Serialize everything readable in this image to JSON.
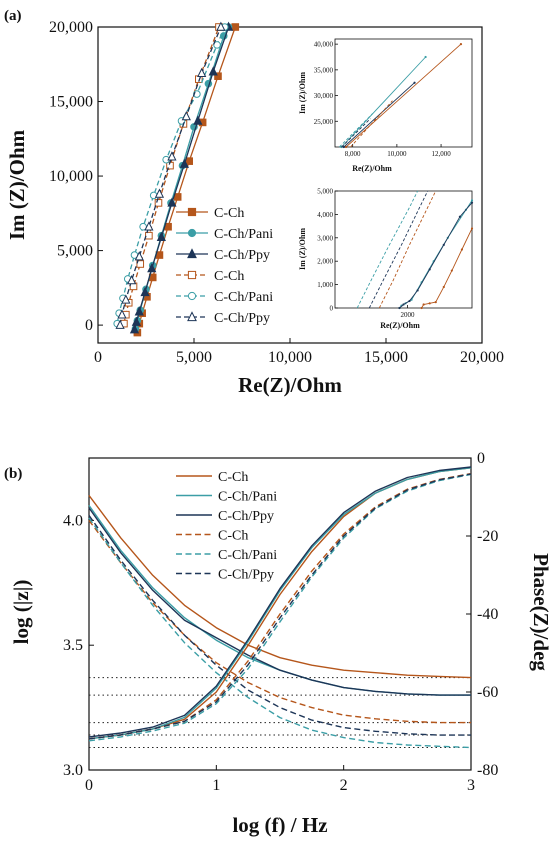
{
  "colors": {
    "C-Ch": "#b5561b",
    "C-Ch/Pani": "#3b9ea6",
    "C-Ch/Ppy": "#1d3557"
  },
  "chart_data": [
    {
      "panel": "(a)",
      "type": "scatter",
      "xlabel": "Re(Z)/Ohm",
      "ylabel": "Im (Z)/Ohm",
      "xlim": [
        0,
        20000
      ],
      "ylim": [
        -1200,
        20000
      ],
      "xticks": [
        0,
        5000,
        10000,
        15000,
        20000
      ],
      "xtick_labels": [
        "0",
        "5,000",
        "10,000",
        "15,000",
        "20,000"
      ],
      "yticks": [
        0,
        5000,
        10000,
        15000,
        20000
      ],
      "ytick_labels": [
        "0",
        "5,000",
        "10,000",
        "15,000",
        "20,000"
      ],
      "legend": "center-left",
      "series": [
        {
          "name": "C-Ch",
          "color_key": "C-Ch",
          "style": "solid",
          "marker": "square",
          "filled": true,
          "points": [
            [
              2050,
              -500
            ],
            [
              2150,
              100
            ],
            [
              2300,
              800
            ],
            [
              2550,
              1900
            ],
            [
              2850,
              3200
            ],
            [
              3200,
              4700
            ],
            [
              3650,
              6600
            ],
            [
              4150,
              8600
            ],
            [
              4750,
              11000
            ],
            [
              5450,
              13600
            ],
            [
              6250,
              16700
            ],
            [
              7150,
              20000
            ]
          ]
        },
        {
          "name": "C-Ch/Pani",
          "color_key": "C-Ch/Pani",
          "style": "solid",
          "marker": "circle",
          "filled": true,
          "points": [
            [
              1950,
              -250
            ],
            [
              2050,
              300
            ],
            [
              2200,
              1000
            ],
            [
              2500,
              2400
            ],
            [
              2850,
              4000
            ],
            [
              3300,
              6000
            ],
            [
              3800,
              8200
            ],
            [
              4400,
              10700
            ],
            [
              5000,
              13300
            ],
            [
              5750,
              16200
            ],
            [
              6550,
              19400
            ],
            [
              6800,
              20000
            ]
          ]
        },
        {
          "name": "C-Ch/Ppy",
          "color_key": "C-Ch/Ppy",
          "style": "solid",
          "marker": "triangle",
          "filled": true,
          "points": [
            [
              1900,
              -300
            ],
            [
              2000,
              200
            ],
            [
              2150,
              900
            ],
            [
              2450,
              2200
            ],
            [
              2800,
              3800
            ],
            [
              3300,
              5900
            ],
            [
              3850,
              8200
            ],
            [
              4500,
              10800
            ],
            [
              5200,
              13700
            ],
            [
              6000,
              17000
            ],
            [
              6800,
              20000
            ]
          ]
        },
        {
          "name": "C-Ch",
          "color_key": "C-Ch",
          "style": "dashed",
          "marker": "square",
          "filled": false,
          "points": [
            [
              1350,
              100
            ],
            [
              1450,
              700
            ],
            [
              1600,
              1500
            ],
            [
              1850,
              2600
            ],
            [
              2200,
              4100
            ],
            [
              2650,
              6000
            ],
            [
              3150,
              8200
            ],
            [
              3750,
              10700
            ],
            [
              4450,
              13500
            ],
            [
              5250,
              16500
            ],
            [
              6300,
              20000
            ]
          ]
        },
        {
          "name": "C-Ch/Pani",
          "color_key": "C-Ch/Pani",
          "style": "dashed",
          "marker": "circle",
          "filled": false,
          "points": [
            [
              1000,
              100
            ],
            [
              1100,
              800
            ],
            [
              1300,
              1800
            ],
            [
              1550,
              3100
            ],
            [
              1900,
              4700
            ],
            [
              2350,
              6600
            ],
            [
              2900,
              8700
            ],
            [
              3550,
              11100
            ],
            [
              4350,
              13700
            ],
            [
              5150,
              15500
            ],
            [
              6200,
              18800
            ],
            [
              6600,
              20000
            ]
          ]
        },
        {
          "name": "C-Ch/Ppy",
          "color_key": "C-Ch/Ppy",
          "style": "dashed",
          "marker": "triangle",
          "filled": false,
          "points": [
            [
              1150,
              0
            ],
            [
              1250,
              700
            ],
            [
              1450,
              1700
            ],
            [
              1750,
              3000
            ],
            [
              2150,
              4600
            ],
            [
              2650,
              6600
            ],
            [
              3200,
              8800
            ],
            [
              3850,
              11300
            ],
            [
              4600,
              14000
            ],
            [
              5400,
              16900
            ],
            [
              6400,
              20000
            ]
          ]
        }
      ],
      "insets": [
        {
          "xlabel": "Re(Z)/Ohm",
          "ylabel": "Im (Z)/Ohm",
          "xlim": [
            7200,
            13400
          ],
          "ylim": [
            20000,
            41000
          ],
          "xticks": [
            8000,
            10000,
            12000
          ],
          "xtick_labels": [
            "8,000",
            "10,000",
            "12,000"
          ],
          "yticks": [
            25000,
            30000,
            35000,
            40000
          ],
          "ytick_labels": [
            "25,000",
            "30,000",
            "35,000",
            "40,000"
          ],
          "lines": [
            {
              "color_key": "C-Ch",
              "style": "solid",
              "points": [
                [
                  7700,
                  20000
                ],
                [
                  12900,
                  40000
                ]
              ]
            },
            {
              "color_key": "C-Ch/Pani",
              "style": "solid",
              "points": [
                [
                  7500,
                  20000
                ],
                [
                  11300,
                  37500
                ]
              ]
            },
            {
              "color_key": "C-Ch/Ppy",
              "style": "solid",
              "points": [
                [
                  7600,
                  20000
                ],
                [
                  10800,
                  32500
                ]
              ]
            },
            {
              "color_key": "C-Ch",
              "style": "dashed",
              "points": [
                [
                  7900,
                  20000
                ],
                [
                  9800,
                  29000
                ]
              ]
            },
            {
              "color_key": "C-Ch/Pani",
              "style": "dashed",
              "points": [
                [
                  7400,
                  20000
                ],
                [
                  8900,
                  26500
                ]
              ]
            },
            {
              "color_key": "C-Ch/Ppy",
              "style": "dashed",
              "points": [
                [
                  7500,
                  20000
                ],
                [
                  8800,
                  25500
                ]
              ]
            }
          ]
        },
        {
          "xlabel": "Re(Z)/Ohm",
          "ylabel": "Im (Z)/Ohm",
          "xlim": [
            200,
            3600
          ],
          "ylim": [
            0,
            5000
          ],
          "xticks": [
            2000
          ],
          "xtick_labels": [
            "2000"
          ],
          "yticks": [
            0,
            1000,
            2000,
            3000,
            4000,
            5000
          ],
          "ytick_labels": [
            "0",
            "1,000",
            "2,000",
            "3,000",
            "4,000",
            "5,000"
          ],
          "lines": [
            {
              "color_key": "C-Ch",
              "style": "solid",
              "points": [
                [
                  2350,
                  0
                ],
                [
                  2400,
                  150
                ],
                [
                  2550,
                  200
                ],
                [
                  2700,
                  250
                ],
                [
                  2900,
                  900
                ],
                [
                  3100,
                  1600
                ],
                [
                  3350,
                  2500
                ],
                [
                  3600,
                  3400
                ]
              ]
            },
            {
              "color_key": "C-Ch/Pani",
              "style": "solid",
              "points": [
                [
                  1800,
                  0
                ],
                [
                  1850,
                  100
                ],
                [
                  1950,
                  200
                ],
                [
                  2100,
                  350
                ],
                [
                  2350,
                  1100
                ],
                [
                  2650,
                  2000
                ],
                [
                  3000,
                  3000
                ],
                [
                  3450,
                  4200
                ],
                [
                  3600,
                  4600
                ]
              ]
            },
            {
              "color_key": "C-Ch/Ppy",
              "style": "solid",
              "points": [
                [
                  1800,
                  0
                ],
                [
                  1900,
                  150
                ],
                [
                  2050,
                  300
                ],
                [
                  2250,
                  750
                ],
                [
                  2550,
                  1650
                ],
                [
                  2900,
                  2700
                ],
                [
                  3300,
                  3900
                ],
                [
                  3600,
                  4500
                ]
              ]
            },
            {
              "color_key": "C-Ch",
              "style": "dashed",
              "points": [
                [
                  1300,
                  0
                ],
                [
                  1650,
                  1200
                ],
                [
                  2050,
                  2700
                ],
                [
                  2500,
                  4300
                ],
                [
                  2700,
                  5000
                ]
              ]
            },
            {
              "color_key": "C-Ch/Pani",
              "style": "dashed",
              "points": [
                [
                  750,
                  0
                ],
                [
                  1100,
                  1200
                ],
                [
                  1550,
                  2700
                ],
                [
                  2050,
                  4300
                ],
                [
                  2250,
                  5000
                ]
              ]
            },
            {
              "color_key": "C-Ch/Ppy",
              "style": "dashed",
              "points": [
                [
                  1050,
                  0
                ],
                [
                  1400,
                  1200
                ],
                [
                  1850,
                  2700
                ],
                [
                  2300,
                  4300
                ],
                [
                  2500,
                  5000
                ]
              ]
            }
          ]
        }
      ]
    },
    {
      "panel": "(b)",
      "type": "line",
      "xlabel": "log (f) / Hz",
      "ylabel": "log (|z|)",
      "ylabel_right": "Phase(Z)/deg",
      "xlim": [
        0,
        3
      ],
      "ylim": [
        3.0,
        4.25
      ],
      "ylim_right": [
        -80,
        0
      ],
      "xticks": [
        0,
        1,
        2,
        3
      ],
      "xtick_labels": [
        "0",
        "1",
        "2",
        "3"
      ],
      "yticks": [
        3.0,
        3.5,
        4.0
      ],
      "ytick_labels": [
        "3.0",
        "3.5",
        "4.0"
      ],
      "yticks_right": [
        0,
        -20,
        -40,
        -60,
        -80
      ],
      "ytick_labels_right": [
        "0",
        "-20",
        "-40",
        "-60",
        "-80"
      ],
      "legend": "top-left",
      "reference_lines_logz": [
        3.37,
        3.3,
        3.19,
        3.14,
        3.09
      ],
      "x": [
        0,
        0.25,
        0.5,
        0.75,
        1.0,
        1.25,
        1.5,
        1.75,
        2.0,
        2.25,
        2.5,
        2.75,
        3.0
      ],
      "series_logz": [
        {
          "name": "C-Ch",
          "color_key": "C-Ch",
          "style": "solid",
          "values": [
            4.1,
            3.93,
            3.78,
            3.66,
            3.57,
            3.5,
            3.45,
            3.42,
            3.4,
            3.39,
            3.38,
            3.375,
            3.37
          ]
        },
        {
          "name": "C-Ch/Pani",
          "color_key": "C-Ch/Pani",
          "style": "solid",
          "values": [
            4.06,
            3.88,
            3.73,
            3.61,
            3.52,
            3.45,
            3.4,
            3.36,
            3.33,
            3.315,
            3.305,
            3.3,
            3.3
          ]
        },
        {
          "name": "C-Ch/Ppy",
          "color_key": "C-Ch/Ppy",
          "style": "solid",
          "values": [
            4.05,
            3.87,
            3.72,
            3.6,
            3.53,
            3.46,
            3.4,
            3.36,
            3.33,
            3.315,
            3.305,
            3.3,
            3.3
          ]
        },
        {
          "name": "C-Ch",
          "color_key": "C-Ch",
          "style": "dashed",
          "values": [
            4.0,
            3.83,
            3.67,
            3.54,
            3.43,
            3.35,
            3.29,
            3.25,
            3.22,
            3.205,
            3.195,
            3.19,
            3.19
          ]
        },
        {
          "name": "C-Ch/Pani",
          "color_key": "C-Ch/Pani",
          "style": "dashed",
          "values": [
            4.01,
            3.83,
            3.66,
            3.51,
            3.39,
            3.29,
            3.21,
            3.16,
            3.13,
            3.11,
            3.1,
            3.095,
            3.09
          ]
        },
        {
          "name": "C-Ch/Ppy",
          "color_key": "C-Ch/Ppy",
          "style": "dashed",
          "values": [
            4.02,
            3.84,
            3.68,
            3.54,
            3.42,
            3.32,
            3.25,
            3.2,
            3.17,
            3.155,
            3.145,
            3.14,
            3.14
          ]
        }
      ],
      "series_phase": [
        {
          "name": "C-Ch",
          "color_key": "C-Ch",
          "style": "solid",
          "values": [
            -72,
            -71,
            -69.5,
            -67,
            -60,
            -48,
            -35,
            -24,
            -15,
            -9,
            -5.5,
            -3.5,
            -2.5
          ]
        },
        {
          "name": "C-Ch/Pani",
          "color_key": "C-Ch/Pani",
          "style": "solid",
          "values": [
            -72,
            -71,
            -69.5,
            -66.5,
            -59,
            -47,
            -34,
            -23,
            -14.5,
            -9,
            -5.5,
            -3.5,
            -2.5
          ]
        },
        {
          "name": "C-Ch/Ppy",
          "color_key": "C-Ch/Ppy",
          "style": "solid",
          "values": [
            -71.5,
            -70.5,
            -69,
            -66,
            -58.5,
            -46.5,
            -33.5,
            -22.5,
            -14,
            -8.5,
            -5,
            -3.2,
            -2.3
          ]
        },
        {
          "name": "C-Ch",
          "color_key": "C-Ch",
          "style": "dashed",
          "values": [
            -72,
            -71,
            -69.5,
            -67.5,
            -62,
            -52,
            -40,
            -29,
            -19.5,
            -12.5,
            -8,
            -5.5,
            -4
          ]
        },
        {
          "name": "C-Ch/Pani",
          "color_key": "C-Ch/Pani",
          "style": "dashed",
          "values": [
            -72.5,
            -71.5,
            -70,
            -68,
            -63,
            -54,
            -42,
            -30.5,
            -20.5,
            -13,
            -8.5,
            -5.8,
            -4.2
          ]
        },
        {
          "name": "C-Ch/Ppy",
          "color_key": "C-Ch/Ppy",
          "style": "dashed",
          "values": [
            -72,
            -71,
            -69.5,
            -67.5,
            -62.5,
            -53,
            -41,
            -30,
            -20,
            -12.8,
            -8.2,
            -5.6,
            -4.1
          ]
        }
      ]
    }
  ]
}
